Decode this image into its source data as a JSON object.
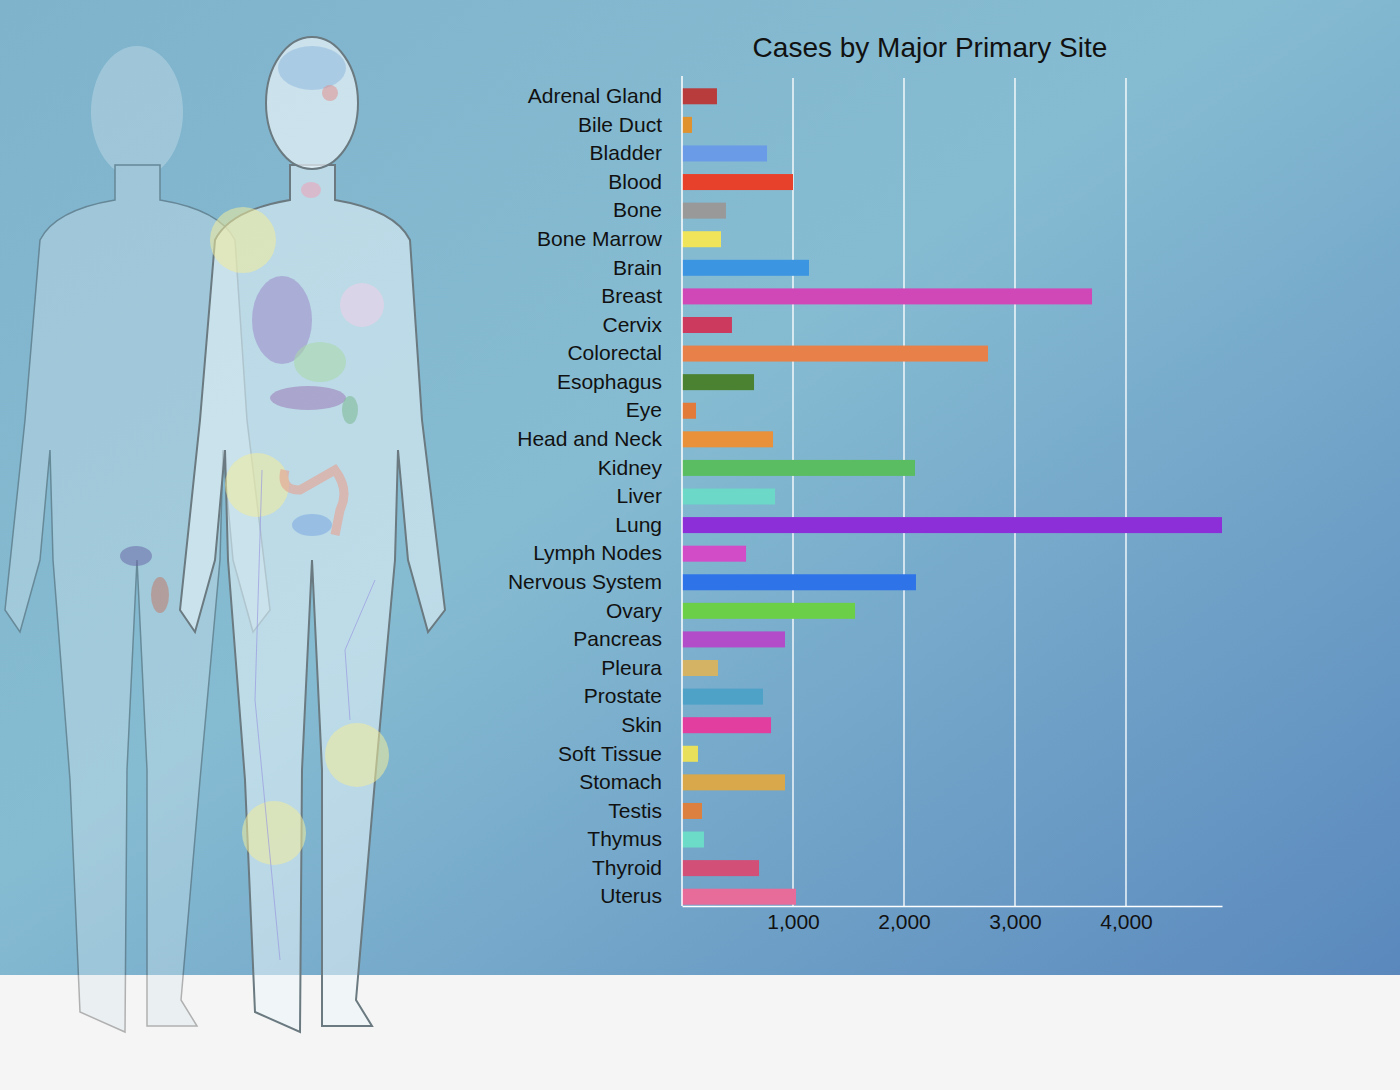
{
  "chart_data": {
    "type": "bar",
    "title": "Cases by Major Primary Site",
    "orientation": "horizontal",
    "grid": true,
    "categories": [
      "Adrenal Gland",
      "Bile Duct",
      "Bladder",
      "Blood",
      "Bone",
      "Bone Marrow",
      "Brain",
      "Breast",
      "Cervix",
      "Colorectal",
      "Esophagus",
      "Eye",
      "Head and Neck",
      "Kidney",
      "Liver",
      "Lung",
      "Lymph Nodes",
      "Nervous System",
      "Ovary",
      "Pancreas",
      "Pleura",
      "Prostate",
      "Skin",
      "Soft Tissue",
      "Stomach",
      "Testis",
      "Thymus",
      "Thyroid",
      "Uterus"
    ],
    "values": [
      315,
      90,
      766,
      1000,
      396,
      351,
      1144,
      3694,
      450,
      2757,
      649,
      126,
      820,
      2099,
      838,
      4865,
      577,
      2108,
      1559,
      928,
      324,
      730,
      802,
      144,
      928,
      180,
      198,
      694,
      1027
    ],
    "colors": [
      "#b83c3c",
      "#e0922e",
      "#6a9be6",
      "#e8412b",
      "#999999",
      "#f0e55a",
      "#3c95e0",
      "#d048b8",
      "#cc3a5e",
      "#e8804a",
      "#4a8232",
      "#e27a3a",
      "#e8903a",
      "#5abd62",
      "#6cd8c8",
      "#8d2fd8",
      "#d24cc8",
      "#2e74e8",
      "#6ccf48",
      "#b24cc8",
      "#d4b464",
      "#4ea2c8",
      "#e23ea0",
      "#e8e05a",
      "#d8a84a",
      "#dc8040",
      "#6cdcc8",
      "#d25078",
      "#e86c9a"
    ],
    "xlim": [
      0,
      4865
    ],
    "xticks": [
      {
        "value": 1000,
        "label": "1,000"
      },
      {
        "value": 2000,
        "label": "2,000"
      },
      {
        "value": 3000,
        "label": "3,000"
      },
      {
        "value": 4000,
        "label": "4,000"
      }
    ]
  }
}
